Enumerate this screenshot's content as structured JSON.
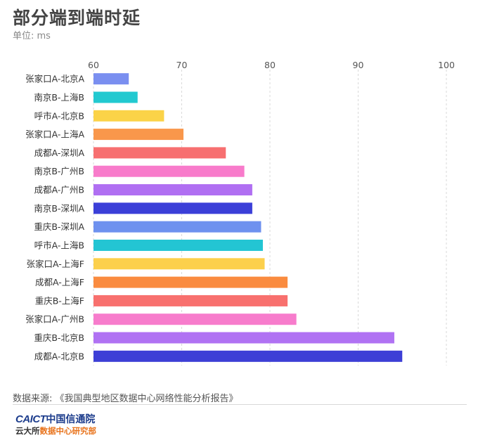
{
  "header": {
    "title": "部分端到端时延",
    "unit_label": "单位: ms"
  },
  "chart_data": {
    "type": "bar",
    "orientation": "horizontal",
    "title": "部分端到端时延",
    "subtitle": "单位: ms",
    "xlim": [
      60,
      100
    ],
    "xticks": [
      60,
      70,
      80,
      90,
      100
    ],
    "grid": "vertical dashed",
    "categories": [
      "张家口A-北京A",
      "南京B-上海B",
      "呼市A-北京B",
      "张家口A-上海A",
      "成都A-深圳A",
      "南京B-广州B",
      "成都A-广州B",
      "南京B-深圳A",
      "重庆B-深圳A",
      "呼市A-上海B",
      "张家口A-上海F",
      "成都A-上海F",
      "重庆B-上海F",
      "张家口A-广州B",
      "重庆B-北京B",
      "成都A-北京B"
    ],
    "values": [
      64,
      65,
      68,
      70.2,
      75,
      77.1,
      78,
      78,
      79,
      79.2,
      79.4,
      82,
      82,
      83,
      94.1,
      95
    ],
    "colors": [
      "#7a8ff0",
      "#22c9d0",
      "#fbd348",
      "#f9974b",
      "#f76f70",
      "#f87bcb",
      "#b06ff2",
      "#3b3fd8",
      "#6e91ef",
      "#23c5d3",
      "#fcd04c",
      "#fa8b3f",
      "#f8706e",
      "#f77ccc",
      "#b072f3",
      "#3d3fd6"
    ]
  },
  "footer": {
    "source": "数据来源: 《我国典型地区数据中心网络性能分析报告》",
    "logo_en": "CAICT",
    "logo_cn": "中国信通院",
    "logo_sub1": "云大所",
    "logo_sub2": "数据中心研究部"
  }
}
